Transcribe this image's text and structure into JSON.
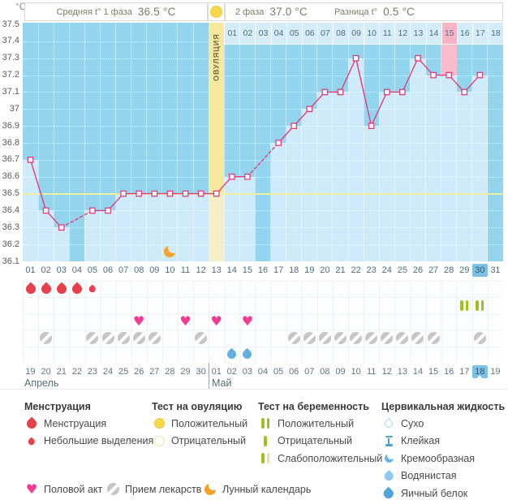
{
  "header": {
    "unit_label": "°C",
    "phase1_label": "Средняя t° 1 фаза",
    "phase1_value": "36.5 °C",
    "phase2_label": "2 фаза",
    "phase2_value": "37.0 °C",
    "diff_label": "Разница t°",
    "diff_value": "0.5 °C",
    "ovulation_label": "ОВУЛЯЦИЯ"
  },
  "colors": {
    "chart_bg": "#93d4ee",
    "fill": "#cfeaf8",
    "strip_cell": "#d4edf9",
    "pink_col": "#f9bcca",
    "pink_cell": "#f8b3c6",
    "yellow_col": "#f7e8a0",
    "yellow_fill": "#f5efc8",
    "coverline": "#eef0a2",
    "line": "#e23d7a",
    "today_bg": "#7cc2e6",
    "menstruation": "#e8404a",
    "heart": "#f23b93",
    "pill": "#c6c6c6",
    "moon": "#f5a229",
    "test_green": "#9dc21d",
    "test_green_weak": "#dce8ad",
    "test_yellow": "#f6d84a",
    "fluid_blue": "#5fb0e0",
    "fluid_dry": "#a5d2ec",
    "fluid_sticky": "#4ba3d8",
    "fluid_creamy": "#6cb4e4",
    "fluid_watery": "#8ecaed",
    "fluid_eggwhite": "#4da5dc",
    "red_date": "#e8356e"
  },
  "chart_data": {
    "type": "line",
    "title": "",
    "ylabel": "°C",
    "ylim": [
      36.1,
      37.5
    ],
    "grid": true,
    "yticks": [
      "37.5",
      "37.4",
      "37.3",
      "37.2",
      "37.1",
      "37",
      "36.9",
      "36.8",
      "36.7",
      "36.6",
      "36.5",
      "36.4",
      "36.3",
      "36.2",
      "36.1"
    ],
    "cycle_days": [
      "01",
      "02",
      "03",
      "04",
      "05",
      "06",
      "07",
      "08",
      "09",
      "10",
      "11",
      "12",
      "13",
      "14",
      "15",
      "16",
      "17",
      "18",
      "19",
      "20",
      "21",
      "22",
      "23",
      "24",
      "25",
      "26",
      "27",
      "28",
      "29",
      "30",
      "31"
    ],
    "values": [
      36.7,
      36.4,
      36.3,
      null,
      36.4,
      36.4,
      36.5,
      36.5,
      36.5,
      36.5,
      36.5,
      36.5,
      36.5,
      36.6,
      36.6,
      null,
      36.8,
      36.9,
      37.0,
      37.1,
      37.1,
      37.3,
      36.9,
      37.1,
      37.1,
      37.3,
      37.2,
      37.2,
      37.1,
      37.2,
      null
    ],
    "units": "°C",
    "coverline": 36.5,
    "phase1_avg": 36.5,
    "phase2_avg": 37.0,
    "temp_difference": 0.5,
    "ovulation_day": 13,
    "pink_day": 28,
    "today_day": 30,
    "dpo_start_day": 14,
    "dpo_labels": [
      "01",
      "02",
      "03",
      "04",
      "05",
      "06",
      "07",
      "08",
      "09",
      "10",
      "11",
      "12",
      "13",
      "14",
      "15",
      "16",
      "17",
      "18"
    ],
    "dpo_pink_label": "15",
    "dates": [
      "19",
      "20",
      "21",
      "22",
      "23",
      "24",
      "25",
      "26",
      "27",
      "28",
      "29",
      "30",
      "01",
      "02",
      "03",
      "04",
      "05",
      "06",
      "07",
      "08",
      "09",
      "10",
      "11",
      "12",
      "13",
      "14",
      "15",
      "16",
      "17",
      "18",
      "19"
    ],
    "red_date_indexes": [
      5,
      6,
      12,
      13,
      19,
      20,
      26,
      27
    ],
    "today_date_index": 29,
    "months": [
      {
        "label": "Апрель"
      },
      {
        "label": "Май"
      }
    ],
    "annotations": {
      "menstruation_days": [
        1,
        2,
        3,
        4
      ],
      "spotting_days": [
        5
      ],
      "ovulation_test_positive_days": [
        13
      ],
      "pregnancy_test_positive_days": [
        29,
        30
      ],
      "intercourse_days": [
        8,
        11,
        13,
        15
      ],
      "medication_days": [
        2,
        5,
        6,
        7,
        8,
        9,
        12,
        18,
        19,
        20,
        21,
        22,
        23,
        24,
        25,
        26,
        27,
        30
      ],
      "fluid_days": [
        14,
        15
      ],
      "lunar_days": [
        10
      ]
    }
  },
  "legend": {
    "menstruation": {
      "title": "Менструация",
      "items": [
        {
          "icon": "drop-large-icon",
          "label": "Менструация"
        },
        {
          "icon": "drop-small-icon",
          "label": "Небольшие выделения"
        }
      ]
    },
    "ovulation_test": {
      "title": "Тест на овуляцию",
      "items": [
        {
          "icon": "circle-filled-icon",
          "label": "Положительный"
        },
        {
          "icon": "circle-outline-icon",
          "label": "Отрицательный"
        }
      ]
    },
    "pregnancy_test": {
      "title": "Тест на беременность",
      "items": [
        {
          "icon": "bars-positive-icon",
          "label": "Положительный"
        },
        {
          "icon": "bar-negative-icon",
          "label": "Отрицательный"
        },
        {
          "icon": "bars-weak-icon",
          "label": "Слабоположительный"
        }
      ]
    },
    "cervical_fluid": {
      "title": "Цервикальная жидкость",
      "items": [
        {
          "icon": "drop-outline-icon",
          "label": "Сухо"
        },
        {
          "icon": "sticky-icon",
          "label": "Клейкая"
        },
        {
          "icon": "creamy-icon",
          "label": "Кремообразная"
        },
        {
          "icon": "watery-icon",
          "label": "Водянистая"
        },
        {
          "icon": "eggwhite-icon",
          "label": "Яичный белок"
        }
      ]
    },
    "extra": [
      {
        "icon": "heart-icon",
        "label": "Половой акт"
      },
      {
        "icon": "pill-icon",
        "label": "Прием лекарств"
      },
      {
        "icon": "moon-icon",
        "label": "Лунный календарь"
      }
    ]
  }
}
